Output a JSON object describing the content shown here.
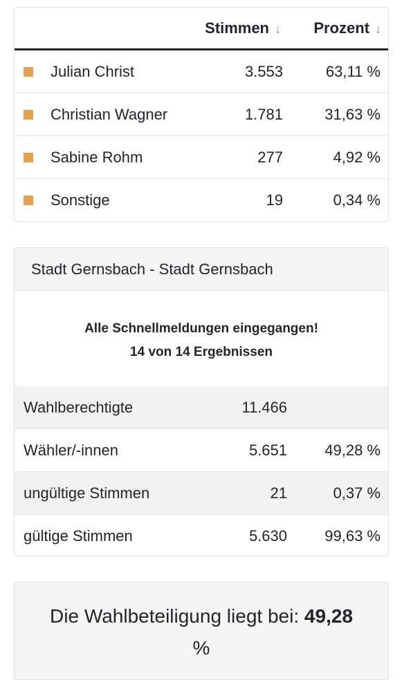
{
  "results": {
    "columns": {
      "votes_label": "Stimmen",
      "percent_label": "Prozent",
      "sort_icon": "arrow-down-icon"
    },
    "swatch_color": "#E8A14B",
    "rows": [
      {
        "name": "Julian Christ",
        "votes": "3.553",
        "percent": "63,11 %"
      },
      {
        "name": "Christian Wagner",
        "votes": "1.781",
        "percent": "31,63 %"
      },
      {
        "name": "Sabine Rohm",
        "votes": "277",
        "percent": "4,92 %"
      },
      {
        "name": "Sonstige",
        "votes": "19",
        "percent": "0,34 %"
      }
    ]
  },
  "district": {
    "title": "Stadt Gernsbach - Stadt Gernsbach",
    "notice_line1": "Alle Schnellmeldungen eingegangen!",
    "notice_line2": "14 von 14 Ergebnissen",
    "stats": [
      {
        "label": "Wahlberechtigte",
        "value": "11.466",
        "percent": ""
      },
      {
        "label": "Wähler/-innen",
        "value": "5.651",
        "percent": "49,28 %"
      },
      {
        "label": "ungültige Stimmen",
        "value": "21",
        "percent": "0,37 %"
      },
      {
        "label": "gültige Stimmen",
        "value": "5.630",
        "percent": "99,63 %"
      }
    ]
  },
  "turnout": {
    "prefix": "Die Wahlbeteiligung liegt bei:",
    "value": "49,28",
    "unit": "%"
  }
}
